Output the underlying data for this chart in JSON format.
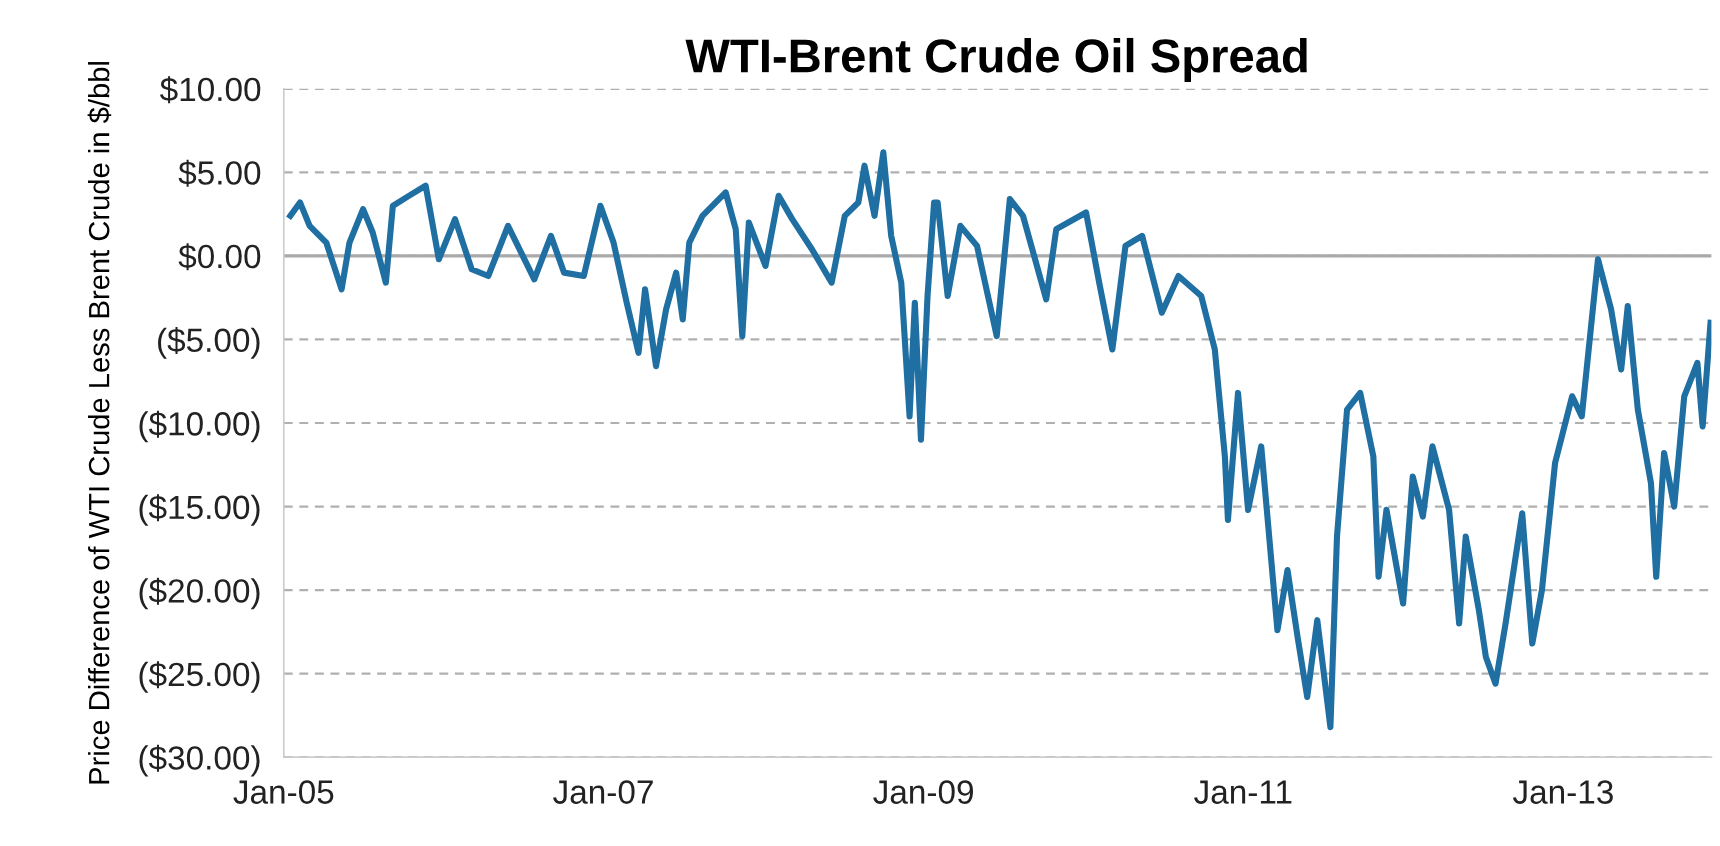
{
  "chart_data": {
    "type": "line",
    "title": "WTI-Brent Crude Oil Spread",
    "ylabel": "Price Difference of WTI Crude Less Brent Crude in $/bbl",
    "xlim": [
      "2005-01-01",
      "2013-12-05"
    ],
    "xticks": [
      {
        "value": "2005-01-01",
        "label": "Jan-05"
      },
      {
        "value": "2007-01-01",
        "label": "Jan-07"
      },
      {
        "value": "2009-01-01",
        "label": "Jan-09"
      },
      {
        "value": "2011-01-01",
        "label": "Jan-11"
      },
      {
        "value": "2013-01-01",
        "label": "Jan-13"
      }
    ],
    "ylim": [
      -30,
      10
    ],
    "yticks": [
      {
        "value": 10,
        "label": "$10.00"
      },
      {
        "value": 5,
        "label": "$5.00"
      },
      {
        "value": 0,
        "label": "$0.00"
      },
      {
        "value": -5,
        "label": "($5.00)"
      },
      {
        "value": -10,
        "label": "($10.00)"
      },
      {
        "value": -15,
        "label": "($15.00)"
      },
      {
        "value": -20,
        "label": "($20.00)"
      },
      {
        "value": -25,
        "label": "($25.00)"
      },
      {
        "value": -30,
        "label": "($30.00)"
      }
    ],
    "grid": "y",
    "legend": false,
    "marker": "none",
    "line_style": "solid",
    "ref_lines": [
      {
        "axis": "y",
        "value": 0,
        "color": "#aaaaaa"
      }
    ],
    "x": [
      "2005-01-16",
      "2005-02-07",
      "2005-03-01",
      "2005-04-08",
      "2005-04-23",
      "2005-05-13",
      "2005-05-31",
      "2005-07-01",
      "2005-07-23",
      "2005-08-22",
      "2005-09-07",
      "2005-10-14",
      "2005-11-21",
      "2005-12-21",
      "2006-01-27",
      "2006-03-06",
      "2006-04-13",
      "2006-05-28",
      "2006-07-27",
      "2006-09-03",
      "2006-10-03",
      "2006-11-17",
      "2006-12-25",
      "2007-01-24",
      "2007-02-23",
      "2007-03-22",
      "2007-04-06",
      "2007-05-01",
      "2007-05-24",
      "2007-06-16",
      "2007-07-01",
      "2007-07-16",
      "2007-08-15",
      "2007-10-07",
      "2007-10-30",
      "2007-11-14",
      "2007-11-29",
      "2008-01-06",
      "2008-02-05",
      "2008-03-07",
      "2008-04-21",
      "2008-06-05",
      "2008-07-05",
      "2008-08-05",
      "2008-08-19",
      "2008-09-11",
      "2008-10-01",
      "2008-10-19",
      "2008-11-11",
      "2008-11-30",
      "2008-12-12",
      "2008-12-26",
      "2009-01-10",
      "2009-01-25",
      "2009-02-02",
      "2009-02-25",
      "2009-03-26",
      "2009-05-03",
      "2009-06-17",
      "2009-07-17",
      "2009-08-16",
      "2009-10-08",
      "2009-10-31",
      "2010-01-07",
      "2010-02-06",
      "2010-03-08",
      "2010-04-07",
      "2010-05-15",
      "2010-06-29",
      "2010-08-06",
      "2010-09-27",
      "2010-10-28",
      "2010-11-20",
      "2010-11-27",
      "2010-12-20",
      "2011-01-12",
      "2011-02-11",
      "2011-03-20",
      "2011-04-12",
      "2011-05-05",
      "2011-05-27",
      "2011-06-19",
      "2011-07-19",
      "2011-08-03",
      "2011-08-26",
      "2011-09-25",
      "2011-10-25",
      "2011-11-06",
      "2011-11-24",
      "2012-01-01",
      "2012-01-23",
      "2012-02-15",
      "2012-03-08",
      "2012-04-15",
      "2012-05-08",
      "2012-05-23",
      "2012-06-22",
      "2012-07-08",
      "2012-07-30",
      "2012-08-22",
      "2012-09-29",
      "2012-10-22",
      "2012-11-13",
      "2012-12-13",
      "2013-01-21",
      "2013-02-12",
      "2013-03-21",
      "2013-04-20",
      "2013-05-13",
      "2013-05-28",
      "2013-06-20",
      "2013-07-20",
      "2013-08-01",
      "2013-08-19",
      "2013-09-11",
      "2013-10-04",
      "2013-11-03",
      "2013-11-15",
      "2013-12-03"
    ],
    "series": [
      {
        "color": "#1f6fa3",
        "values": [
          2.4,
          3.2,
          1.8,
          0.8,
          -0.4,
          -2.0,
          0.8,
          2.8,
          1.4,
          -1.6,
          3.0,
          3.6,
          4.2,
          -0.2,
          2.2,
          -0.8,
          -1.2,
          1.8,
          -1.4,
          1.2,
          -1.0,
          -1.2,
          3.0,
          0.8,
          -2.8,
          -5.8,
          -2.0,
          -6.6,
          -3.2,
          -1.0,
          -3.8,
          0.8,
          2.4,
          3.8,
          1.6,
          -4.8,
          2.0,
          -0.6,
          3.6,
          2.2,
          0.4,
          -1.6,
          2.4,
          3.2,
          5.4,
          2.4,
          6.2,
          1.2,
          -1.6,
          -9.6,
          -2.8,
          -11.0,
          -2.4,
          3.2,
          3.2,
          -2.4,
          1.8,
          0.6,
          -4.8,
          3.4,
          2.4,
          -2.6,
          1.6,
          2.6,
          -1.6,
          -5.6,
          0.6,
          1.2,
          -3.4,
          -1.2,
          -2.4,
          -5.6,
          -12.0,
          -15.8,
          -8.2,
          -15.2,
          -11.4,
          -22.4,
          -18.8,
          -22.8,
          -26.4,
          -21.8,
          -28.2,
          -16.8,
          -9.2,
          -8.2,
          -12.0,
          -19.2,
          -15.2,
          -20.8,
          -13.2,
          -15.6,
          -11.4,
          -15.2,
          -22.0,
          -16.8,
          -21.2,
          -24.0,
          -25.6,
          -22.0,
          -15.4,
          -23.2,
          -20.0,
          -12.4,
          -8.4,
          -9.6,
          -0.2,
          -3.2,
          -6.8,
          -3.0,
          -9.2,
          -13.6,
          -19.2,
          -11.8,
          -15.0,
          -8.4,
          -6.4,
          -10.2,
          -4.0
        ]
      }
    ]
  }
}
